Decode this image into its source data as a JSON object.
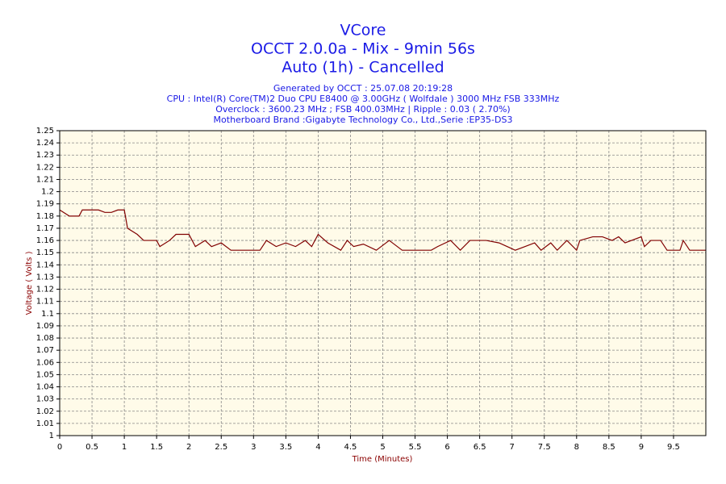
{
  "chart_data": {
    "type": "line",
    "title": "VCore",
    "subtitle": [
      "OCCT 2.0.0a - Mix - 9min 56s",
      "Auto (1h) - Cancelled"
    ],
    "notes": [
      "Generated by OCCT : 25.07.08 20:19:28",
      "CPU : Intel(R) Core(TM)2 Duo CPU E8400 @ 3.00GHz ( Wolfdale ) 3000 MHz FSB 333MHz",
      "Overclock : 3600.23 MHz ; FSB 400.03MHz | Ripple : 0.03 ( 2.70%)",
      "Motherboard Brand :Gigabyte Technology Co., Ltd.,Serie :EP35-DS3"
    ],
    "x_label": "Time (Minutes)",
    "y_label": "Voltage ( Volts )",
    "x": [
      0,
      0.15,
      0.3,
      0.35,
      0.6,
      0.7,
      0.8,
      0.9,
      1.0,
      1.05,
      1.2,
      1.3,
      1.5,
      1.55,
      1.7,
      1.8,
      2.0,
      2.1,
      2.25,
      2.35,
      2.5,
      2.65,
      3.1,
      3.2,
      3.35,
      3.5,
      3.65,
      3.8,
      3.9,
      4.0,
      4.15,
      4.35,
      4.45,
      4.55,
      4.7,
      4.9,
      5.1,
      5.3,
      5.75,
      5.85,
      6.05,
      6.2,
      6.35,
      6.6,
      6.8,
      7.05,
      7.2,
      7.35,
      7.45,
      7.6,
      7.7,
      7.85,
      8.0,
      8.05,
      8.25,
      8.4,
      8.55,
      8.65,
      8.75,
      9.0,
      9.05,
      9.15,
      9.3,
      9.4,
      9.6,
      9.65,
      9.75,
      10
    ],
    "series": [
      {
        "name": "VCore",
        "color": "#800000",
        "values": [
          1.185,
          1.18,
          1.18,
          1.185,
          1.185,
          1.183,
          1.183,
          1.185,
          1.185,
          1.17,
          1.165,
          1.16,
          1.16,
          1.155,
          1.16,
          1.165,
          1.165,
          1.155,
          1.16,
          1.155,
          1.158,
          1.152,
          1.152,
          1.16,
          1.155,
          1.158,
          1.155,
          1.16,
          1.155,
          1.165,
          1.158,
          1.152,
          1.16,
          1.155,
          1.157,
          1.152,
          1.16,
          1.152,
          1.152,
          1.155,
          1.16,
          1.152,
          1.16,
          1.16,
          1.158,
          1.152,
          1.155,
          1.158,
          1.152,
          1.158,
          1.152,
          1.16,
          1.152,
          1.16,
          1.163,
          1.163,
          1.16,
          1.163,
          1.158,
          1.163,
          1.155,
          1.16,
          1.16,
          1.152,
          1.152,
          1.16,
          1.152,
          1.152
        ]
      }
    ],
    "xlim": [
      0,
      10
    ],
    "ylim": [
      1,
      1.25
    ],
    "xticks": [
      0,
      0.5,
      1,
      1.5,
      2,
      2.5,
      3,
      3.5,
      4,
      4.5,
      5,
      5.5,
      6,
      6.5,
      7,
      7.5,
      8,
      8.5,
      9,
      9.5
    ],
    "yticks": [
      1,
      1.01,
      1.02,
      1.03,
      1.04,
      1.05,
      1.06,
      1.07,
      1.08,
      1.09,
      1.1,
      1.11,
      1.12,
      1.13,
      1.14,
      1.15,
      1.16,
      1.17,
      1.18,
      1.19,
      1.2,
      1.21,
      1.22,
      1.23,
      1.24,
      1.25
    ],
    "grid": true
  }
}
